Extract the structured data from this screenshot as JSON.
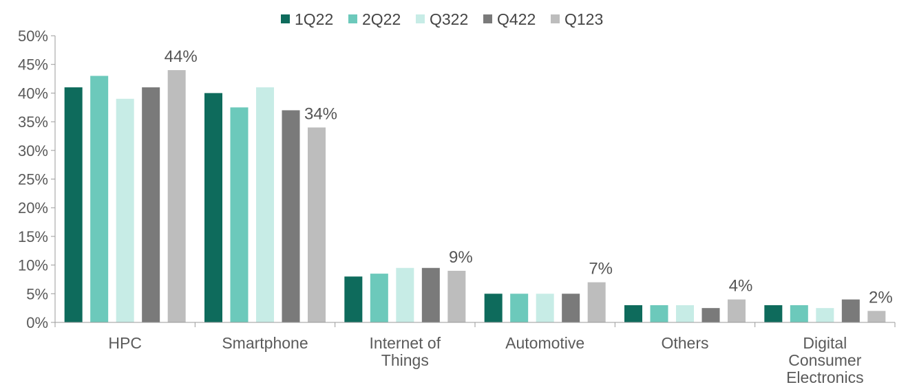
{
  "chart_data": {
    "type": "bar",
    "categories": [
      [
        "HPC"
      ],
      [
        "Smartphone"
      ],
      [
        "Internet of",
        "Things"
      ],
      [
        "Automotive"
      ],
      [
        "Others"
      ],
      [
        "Digital",
        "Consumer",
        "Electronics"
      ]
    ],
    "series": [
      {
        "name": "1Q22",
        "color": "#0e6b5c",
        "values": [
          41,
          40,
          8,
          5,
          3,
          3
        ]
      },
      {
        "name": "2Q22",
        "color": "#6cc9bb",
        "values": [
          43,
          37.5,
          8.5,
          5,
          3,
          3
        ]
      },
      {
        "name": "Q322",
        "color": "#c7ece6",
        "values": [
          39,
          41,
          9.5,
          5,
          3,
          2.5
        ]
      },
      {
        "name": "Q422",
        "color": "#7a7a7a",
        "values": [
          41,
          37,
          9.5,
          5,
          2.5,
          4
        ]
      },
      {
        "name": "Q123",
        "color": "#bdbdbd",
        "values": [
          44,
          34,
          9,
          7,
          4,
          2
        ]
      }
    ],
    "data_labels": [
      "44%",
      "34%",
      "9%",
      "7%",
      "4%",
      "2%"
    ],
    "yticks": [
      "0%",
      "5%",
      "10%",
      "15%",
      "20%",
      "25%",
      "30%",
      "35%",
      "40%",
      "45%",
      "50%"
    ],
    "ylim": [
      0,
      50
    ],
    "legend_position": "top-center",
    "grid": false
  }
}
